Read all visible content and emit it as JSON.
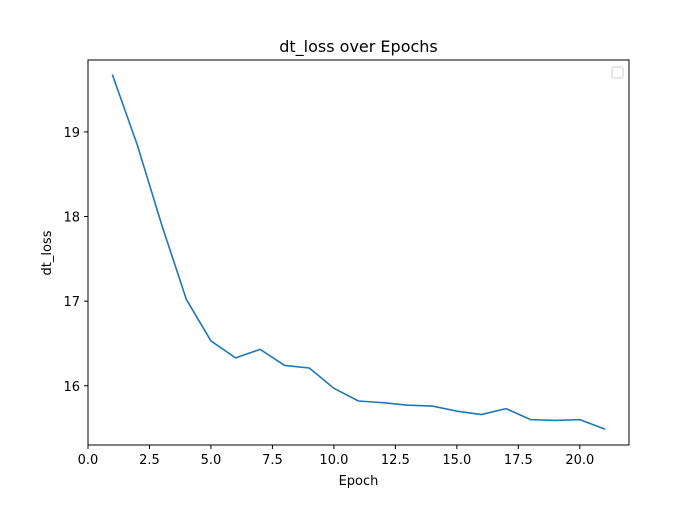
{
  "chart_data": {
    "type": "line",
    "title": "dt_loss over Epochs",
    "xlabel": "Epoch",
    "ylabel": "dt_loss",
    "xlim": [
      0,
      22.0
    ],
    "ylim": [
      15.3,
      19.85
    ],
    "xticks": [
      0.0,
      2.5,
      5.0,
      7.5,
      10.0,
      12.5,
      15.0,
      17.5,
      20.0
    ],
    "xtick_labels": [
      "0.0",
      "2.5",
      "5.0",
      "7.5",
      "10.0",
      "12.5",
      "15.0",
      "17.5",
      "20.0"
    ],
    "yticks": [
      16,
      17,
      18,
      19
    ],
    "ytick_labels": [
      "16",
      "17",
      "18",
      "19"
    ],
    "grid": false,
    "legend": "top-right (empty)",
    "series": [
      {
        "color": "#1f77b4",
        "x": [
          1,
          2,
          3,
          4,
          5,
          6,
          7,
          8,
          9,
          10,
          11,
          12,
          13,
          14,
          15,
          16,
          17,
          18,
          19,
          20,
          21
        ],
        "y": [
          19.67,
          18.85,
          17.9,
          17.02,
          16.53,
          16.33,
          16.43,
          16.24,
          16.21,
          15.97,
          15.82,
          15.8,
          15.77,
          15.76,
          15.7,
          15.66,
          15.73,
          15.6,
          15.59,
          15.6,
          15.49
        ]
      }
    ]
  }
}
